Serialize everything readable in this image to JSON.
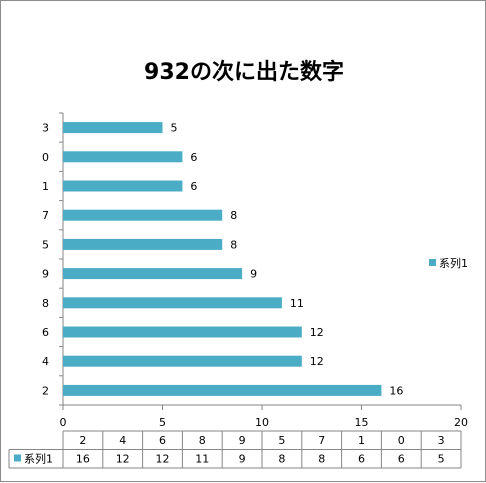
{
  "chart_data": {
    "type": "bar",
    "orientation": "horizontal",
    "title": "932の次に出た数字",
    "categories": [
      "2",
      "4",
      "6",
      "8",
      "9",
      "5",
      "7",
      "1",
      "0",
      "3"
    ],
    "series": [
      {
        "name": "系列1",
        "values": [
          16,
          12,
          12,
          11,
          9,
          8,
          8,
          6,
          6,
          5
        ],
        "color": "#4bacc6"
      }
    ],
    "xlim": [
      0,
      20
    ],
    "x_ticks": [
      0,
      5,
      10,
      15,
      20
    ],
    "grid": false,
    "legend_position": "right",
    "data_table": true
  }
}
